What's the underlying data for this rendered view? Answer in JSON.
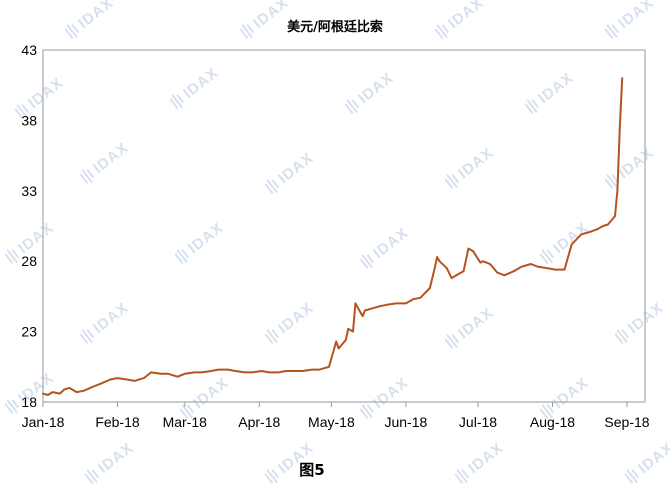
{
  "watermark": "IDAX",
  "caption": "图5",
  "chart_data": {
    "type": "line",
    "title": "美元/阿根廷比索",
    "xlabel": "",
    "ylabel": "",
    "ylim": [
      18,
      43
    ],
    "yticks": [
      18,
      23,
      28,
      33,
      38,
      43
    ],
    "xlim": [
      "2018-01-01",
      "2018-09-01"
    ],
    "xtick_labels": [
      "Jan-18",
      "Feb-18",
      "Mar-18",
      "Apr-18",
      "May-18",
      "Jun-18",
      "Jul-18",
      "Aug-18",
      "Sep-18"
    ],
    "xtick_dates": [
      "2018-01-01",
      "2018-02-01",
      "2018-03-01",
      "2018-04-01",
      "2018-05-01",
      "2018-06-01",
      "2018-07-01",
      "2018-08-01",
      "2018-09-01"
    ],
    "grid": false,
    "legend": "none",
    "line_color": "#b5531f",
    "series": [
      {
        "x": [
          "2018-01-01",
          "2018-01-03",
          "2018-01-05",
          "2018-01-08",
          "2018-01-10",
          "2018-01-12",
          "2018-01-15",
          "2018-01-18",
          "2018-01-22",
          "2018-01-25",
          "2018-01-29",
          "2018-02-01",
          "2018-02-05",
          "2018-02-08",
          "2018-02-12",
          "2018-02-15",
          "2018-02-19",
          "2018-02-22",
          "2018-02-26",
          "2018-03-01",
          "2018-03-05",
          "2018-03-08",
          "2018-03-12",
          "2018-03-15",
          "2018-03-19",
          "2018-03-22",
          "2018-03-26",
          "2018-03-29",
          "2018-04-02",
          "2018-04-05",
          "2018-04-09",
          "2018-04-12",
          "2018-04-16",
          "2018-04-19",
          "2018-04-23",
          "2018-04-26",
          "2018-04-30",
          "2018-05-03",
          "2018-05-04",
          "2018-05-07",
          "2018-05-08",
          "2018-05-10",
          "2018-05-11",
          "2018-05-14",
          "2018-05-15",
          "2018-05-17",
          "2018-05-21",
          "2018-05-24",
          "2018-05-28",
          "2018-06-01",
          "2018-06-04",
          "2018-06-07",
          "2018-06-11",
          "2018-06-13",
          "2018-06-14",
          "2018-06-15",
          "2018-06-18",
          "2018-06-20",
          "2018-06-22",
          "2018-06-25",
          "2018-06-27",
          "2018-06-29",
          "2018-07-02",
          "2018-07-03",
          "2018-07-06",
          "2018-07-09",
          "2018-07-12",
          "2018-07-16",
          "2018-07-19",
          "2018-07-23",
          "2018-07-26",
          "2018-07-30",
          "2018-08-02",
          "2018-08-06",
          "2018-08-09",
          "2018-08-13",
          "2018-08-15",
          "2018-08-17",
          "2018-08-20",
          "2018-08-22",
          "2018-08-24",
          "2018-08-27",
          "2018-08-28",
          "2018-08-29",
          "2018-08-30"
        ],
        "values": [
          18.6,
          18.5,
          18.7,
          18.6,
          18.9,
          19.0,
          18.7,
          18.8,
          19.1,
          19.3,
          19.6,
          19.7,
          19.6,
          19.5,
          19.7,
          20.1,
          20.0,
          20.0,
          19.8,
          20.0,
          20.1,
          20.1,
          20.2,
          20.3,
          20.3,
          20.2,
          20.1,
          20.1,
          20.2,
          20.1,
          20.1,
          20.2,
          20.2,
          20.2,
          20.3,
          20.3,
          20.5,
          22.3,
          21.8,
          22.4,
          23.2,
          23.0,
          25.0,
          24.1,
          24.5,
          24.6,
          24.8,
          24.9,
          25.0,
          25.0,
          25.3,
          25.4,
          26.1,
          27.5,
          28.3,
          28.0,
          27.5,
          26.8,
          27.0,
          27.3,
          28.9,
          28.7,
          27.9,
          28.0,
          27.8,
          27.2,
          27.0,
          27.3,
          27.6,
          27.8,
          27.6,
          27.5,
          27.4,
          27.4,
          29.2,
          29.9,
          30.0,
          30.1,
          30.3,
          30.5,
          30.6,
          31.2,
          33.0,
          37.5,
          41.0
        ]
      }
    ]
  }
}
